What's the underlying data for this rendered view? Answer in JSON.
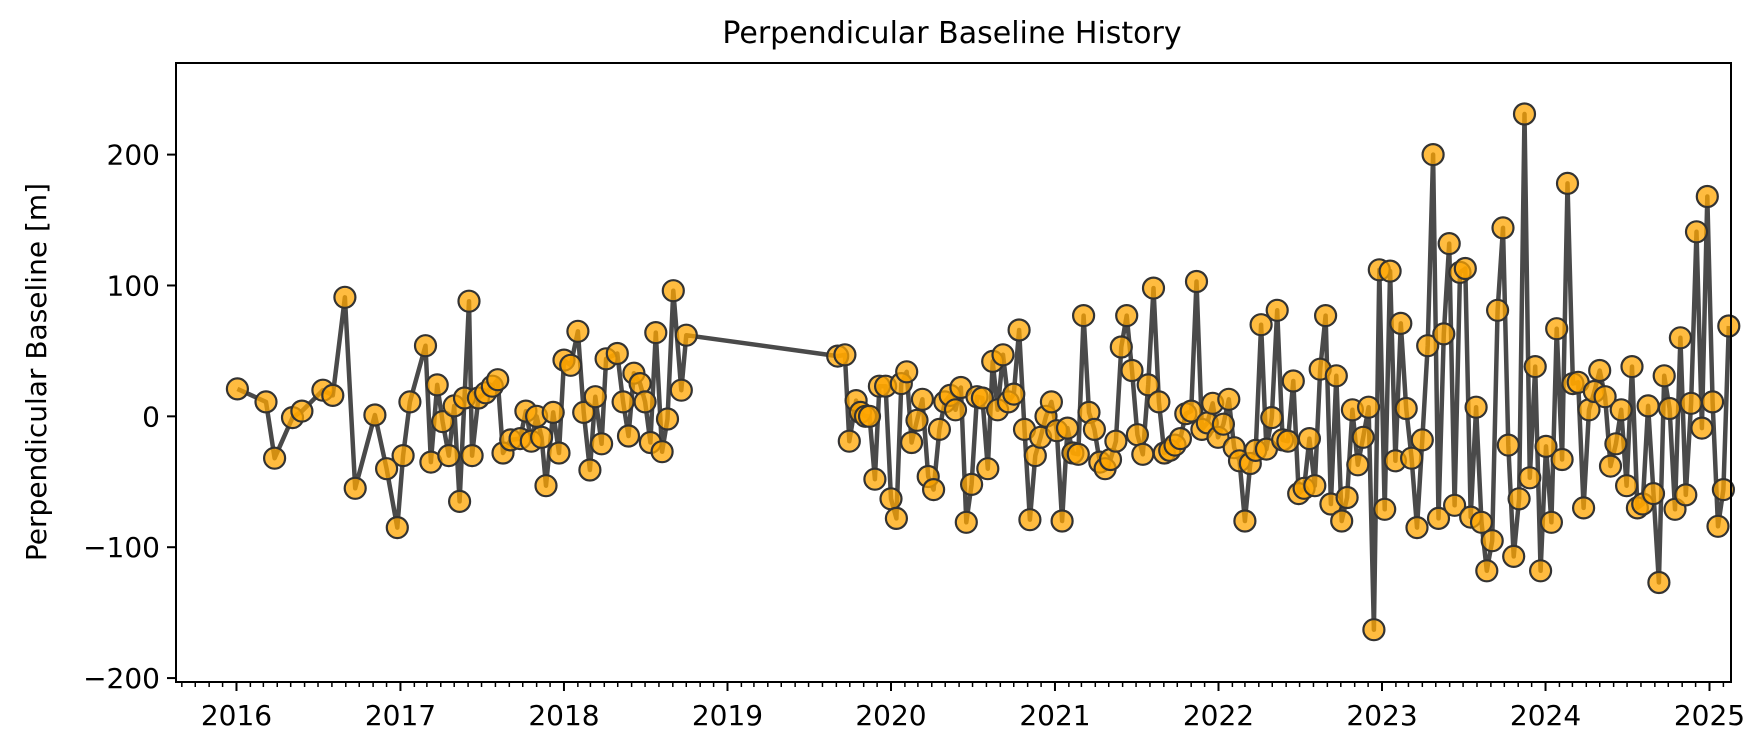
{
  "chart_data": {
    "type": "line",
    "title": "Perpendicular Baseline History",
    "xlabel": "",
    "ylabel": "Perpendicular Baseline [m]",
    "x_ticks": [
      "2016",
      "2017",
      "2018",
      "2019",
      "2020",
      "2021",
      "2022",
      "2023",
      "2024",
      "2025"
    ],
    "y_ticks": [
      -200,
      -100,
      0,
      100,
      200
    ],
    "y_tick_labels": [
      "−200",
      "−100",
      "0",
      "100",
      "200"
    ],
    "xlim": [
      "2015-08-19",
      "2025-02-18"
    ],
    "ylim": [
      -203,
      270
    ],
    "grid": false,
    "legend": "none",
    "line_color": "#4a4a4a",
    "marker_color": "#ffa500",
    "marker_edge": "#333333",
    "points": [
      [
        "2016-01-03",
        21
      ],
      [
        "2016-03-07",
        11
      ],
      [
        "2016-03-26",
        -32
      ],
      [
        "2016-05-05",
        -1
      ],
      [
        "2016-05-26",
        4
      ],
      [
        "2016-07-12",
        20
      ],
      [
        "2016-08-03",
        16
      ],
      [
        "2016-08-30",
        91
      ],
      [
        "2016-09-22",
        -55
      ],
      [
        "2016-11-05",
        1
      ],
      [
        "2016-12-01",
        -40
      ],
      [
        "2016-12-25",
        -85
      ],
      [
        "2017-01-07",
        -30
      ],
      [
        "2017-01-22",
        11
      ],
      [
        "2017-02-26",
        54
      ],
      [
        "2017-03-10",
        -35
      ],
      [
        "2017-03-24",
        24
      ],
      [
        "2017-04-05",
        -4
      ],
      [
        "2017-04-19",
        -30
      ],
      [
        "2017-05-01",
        8
      ],
      [
        "2017-05-13",
        -65
      ],
      [
        "2017-05-24",
        14
      ],
      [
        "2017-06-03",
        88
      ],
      [
        "2017-06-10",
        -30
      ],
      [
        "2017-06-24",
        14
      ],
      [
        "2017-07-10",
        18
      ],
      [
        "2017-07-25",
        23
      ],
      [
        "2017-08-06",
        28
      ],
      [
        "2017-08-18",
        -28
      ],
      [
        "2017-09-04",
        -18
      ],
      [
        "2017-09-25",
        -17
      ],
      [
        "2017-10-08",
        4
      ],
      [
        "2017-10-20",
        -19
      ],
      [
        "2017-11-01",
        0
      ],
      [
        "2017-11-12",
        -16
      ],
      [
        "2017-11-22",
        -53
      ],
      [
        "2017-12-08",
        3
      ],
      [
        "2017-12-21",
        -28
      ],
      [
        "2018-01-01",
        43
      ],
      [
        "2018-01-16",
        39
      ],
      [
        "2018-02-01",
        65
      ],
      [
        "2018-02-14",
        3
      ],
      [
        "2018-02-28",
        -41
      ],
      [
        "2018-03-12",
        15
      ],
      [
        "2018-03-26",
        -21
      ],
      [
        "2018-04-05",
        44
      ],
      [
        "2018-04-30",
        48
      ],
      [
        "2018-05-13",
        11
      ],
      [
        "2018-05-25",
        -15
      ],
      [
        "2018-06-06",
        33
      ],
      [
        "2018-06-20",
        25
      ],
      [
        "2018-07-01",
        11
      ],
      [
        "2018-07-13",
        -20
      ],
      [
        "2018-07-25",
        64
      ],
      [
        "2018-08-08",
        -27
      ],
      [
        "2018-08-20",
        -2
      ],
      [
        "2018-09-02",
        96
      ],
      [
        "2018-09-20",
        20
      ],
      [
        "2018-10-01",
        62
      ],
      [
        "2019-09-04",
        46
      ],
      [
        "2019-09-20",
        47
      ],
      [
        "2019-09-30",
        -19
      ],
      [
        "2019-10-15",
        12
      ],
      [
        "2019-10-25",
        3
      ],
      [
        "2019-11-05",
        0
      ],
      [
        "2019-11-14",
        0
      ],
      [
        "2019-11-26",
        -48
      ],
      [
        "2019-12-06",
        23
      ],
      [
        "2019-12-20",
        23
      ],
      [
        "2020-01-01",
        -63
      ],
      [
        "2020-01-13",
        -78
      ],
      [
        "2020-01-24",
        25
      ],
      [
        "2020-02-05",
        34
      ],
      [
        "2020-02-16",
        -20
      ],
      [
        "2020-02-28",
        -3
      ],
      [
        "2020-03-11",
        13
      ],
      [
        "2020-03-24",
        -46
      ],
      [
        "2020-04-05",
        -56
      ],
      [
        "2020-04-18",
        -10
      ],
      [
        "2020-04-30",
        11
      ],
      [
        "2020-05-12",
        16
      ],
      [
        "2020-05-24",
        5
      ],
      [
        "2020-06-05",
        22
      ],
      [
        "2020-06-17",
        -81
      ],
      [
        "2020-06-29",
        -52
      ],
      [
        "2020-07-11",
        15
      ],
      [
        "2020-07-23",
        14
      ],
      [
        "2020-08-04",
        -40
      ],
      [
        "2020-08-15",
        42
      ],
      [
        "2020-08-26",
        5
      ],
      [
        "2020-09-07",
        47
      ],
      [
        "2020-09-19",
        11
      ],
      [
        "2020-10-01",
        17
      ],
      [
        "2020-10-13",
        66
      ],
      [
        "2020-10-25",
        -10
      ],
      [
        "2020-11-06",
        -79
      ],
      [
        "2020-11-18",
        -30
      ],
      [
        "2020-11-30",
        -16
      ],
      [
        "2020-12-12",
        0
      ],
      [
        "2020-12-24",
        11
      ],
      [
        "2021-01-05",
        -11
      ],
      [
        "2021-01-17",
        -80
      ],
      [
        "2021-01-29",
        -9
      ],
      [
        "2021-02-10",
        -28
      ],
      [
        "2021-02-22",
        -29
      ],
      [
        "2021-03-06",
        77
      ],
      [
        "2021-03-18",
        3
      ],
      [
        "2021-03-30",
        -10
      ],
      [
        "2021-04-11",
        -35
      ],
      [
        "2021-04-23",
        -40
      ],
      [
        "2021-05-05",
        -33
      ],
      [
        "2021-05-17",
        -19
      ],
      [
        "2021-05-29",
        53
      ],
      [
        "2021-06-10",
        77
      ],
      [
        "2021-06-22",
        35
      ],
      [
        "2021-07-04",
        -14
      ],
      [
        "2021-07-16",
        -29
      ],
      [
        "2021-07-28",
        24
      ],
      [
        "2021-08-09",
        98
      ],
      [
        "2021-08-21",
        11
      ],
      [
        "2021-09-02",
        -28
      ],
      [
        "2021-09-14",
        -26
      ],
      [
        "2021-09-26",
        -22
      ],
      [
        "2021-10-08",
        -17
      ],
      [
        "2021-10-20",
        2
      ],
      [
        "2021-11-01",
        4
      ],
      [
        "2021-11-13",
        103
      ],
      [
        "2021-11-25",
        -10
      ],
      [
        "2021-12-07",
        -5
      ],
      [
        "2021-12-19",
        10
      ],
      [
        "2021-12-31",
        -16
      ],
      [
        "2022-01-12",
        -6
      ],
      [
        "2022-01-24",
        13
      ],
      [
        "2022-02-05",
        -24
      ],
      [
        "2022-02-17",
        -34
      ],
      [
        "2022-03-01",
        -80
      ],
      [
        "2022-03-13",
        -36
      ],
      [
        "2022-03-25",
        -26
      ],
      [
        "2022-04-06",
        70
      ],
      [
        "2022-04-18",
        -25
      ],
      [
        "2022-04-30",
        -1
      ],
      [
        "2022-05-12",
        81
      ],
      [
        "2022-05-24",
        -18
      ],
      [
        "2022-06-05",
        -19
      ],
      [
        "2022-06-17",
        27
      ],
      [
        "2022-06-29",
        -59
      ],
      [
        "2022-07-11",
        -55
      ],
      [
        "2022-07-23",
        -17
      ],
      [
        "2022-08-04",
        -53
      ],
      [
        "2022-08-16",
        36
      ],
      [
        "2022-08-28",
        77
      ],
      [
        "2022-09-09",
        -67
      ],
      [
        "2022-09-21",
        31
      ],
      [
        "2022-10-03",
        -80
      ],
      [
        "2022-10-15",
        -62
      ],
      [
        "2022-10-27",
        5
      ],
      [
        "2022-11-08",
        -37
      ],
      [
        "2022-11-20",
        -16
      ],
      [
        "2022-12-02",
        7
      ],
      [
        "2022-12-14",
        -163
      ],
      [
        "2022-12-26",
        112
      ],
      [
        "2023-01-07",
        -71
      ],
      [
        "2023-01-19",
        111
      ],
      [
        "2023-01-31",
        -34
      ],
      [
        "2023-02-12",
        71
      ],
      [
        "2023-02-24",
        6
      ],
      [
        "2023-03-08",
        -32
      ],
      [
        "2023-03-20",
        -85
      ],
      [
        "2023-04-01",
        -18
      ],
      [
        "2023-04-13",
        54
      ],
      [
        "2023-04-25",
        200
      ],
      [
        "2023-05-07",
        -78
      ],
      [
        "2023-05-19",
        63
      ],
      [
        "2023-05-31",
        132
      ],
      [
        "2023-06-12",
        -68
      ],
      [
        "2023-06-24",
        110
      ],
      [
        "2023-07-06",
        113
      ],
      [
        "2023-07-18",
        -77
      ],
      [
        "2023-07-30",
        7
      ],
      [
        "2023-08-11",
        -81
      ],
      [
        "2023-08-23",
        -118
      ],
      [
        "2023-09-04",
        -95
      ],
      [
        "2023-09-16",
        81
      ],
      [
        "2023-09-28",
        144
      ],
      [
        "2023-10-10",
        -22
      ],
      [
        "2023-10-22",
        -107
      ],
      [
        "2023-11-03",
        -63
      ],
      [
        "2023-11-15",
        231
      ],
      [
        "2023-11-27",
        -47
      ],
      [
        "2023-12-09",
        38
      ],
      [
        "2023-12-21",
        -118
      ],
      [
        "2024-01-02",
        -23
      ],
      [
        "2024-01-14",
        -81
      ],
      [
        "2024-01-26",
        67
      ],
      [
        "2024-02-07",
        -33
      ],
      [
        "2024-02-19",
        178
      ],
      [
        "2024-03-02",
        25
      ],
      [
        "2024-03-14",
        26
      ],
      [
        "2024-03-26",
        -70
      ],
      [
        "2024-04-07",
        5
      ],
      [
        "2024-04-19",
        19
      ],
      [
        "2024-05-01",
        35
      ],
      [
        "2024-05-13",
        15
      ],
      [
        "2024-05-25",
        -38
      ],
      [
        "2024-06-06",
        -21
      ],
      [
        "2024-06-18",
        5
      ],
      [
        "2024-06-30",
        -53
      ],
      [
        "2024-07-12",
        38
      ],
      [
        "2024-07-24",
        -70
      ],
      [
        "2024-08-05",
        -67
      ],
      [
        "2024-08-17",
        8
      ],
      [
        "2024-08-29",
        -59
      ],
      [
        "2024-09-10",
        -127
      ],
      [
        "2024-09-22",
        31
      ],
      [
        "2024-10-04",
        6
      ],
      [
        "2024-10-16",
        -71
      ],
      [
        "2024-10-28",
        60
      ],
      [
        "2024-11-09",
        -60
      ],
      [
        "2024-11-21",
        10
      ],
      [
        "2024-12-03",
        141
      ],
      [
        "2024-12-15",
        -9
      ],
      [
        "2024-12-27",
        168
      ],
      [
        "2025-01-08",
        11
      ],
      [
        "2025-01-20",
        -84
      ],
      [
        "2025-02-01",
        -56
      ],
      [
        "2025-02-13",
        69
      ]
    ]
  }
}
